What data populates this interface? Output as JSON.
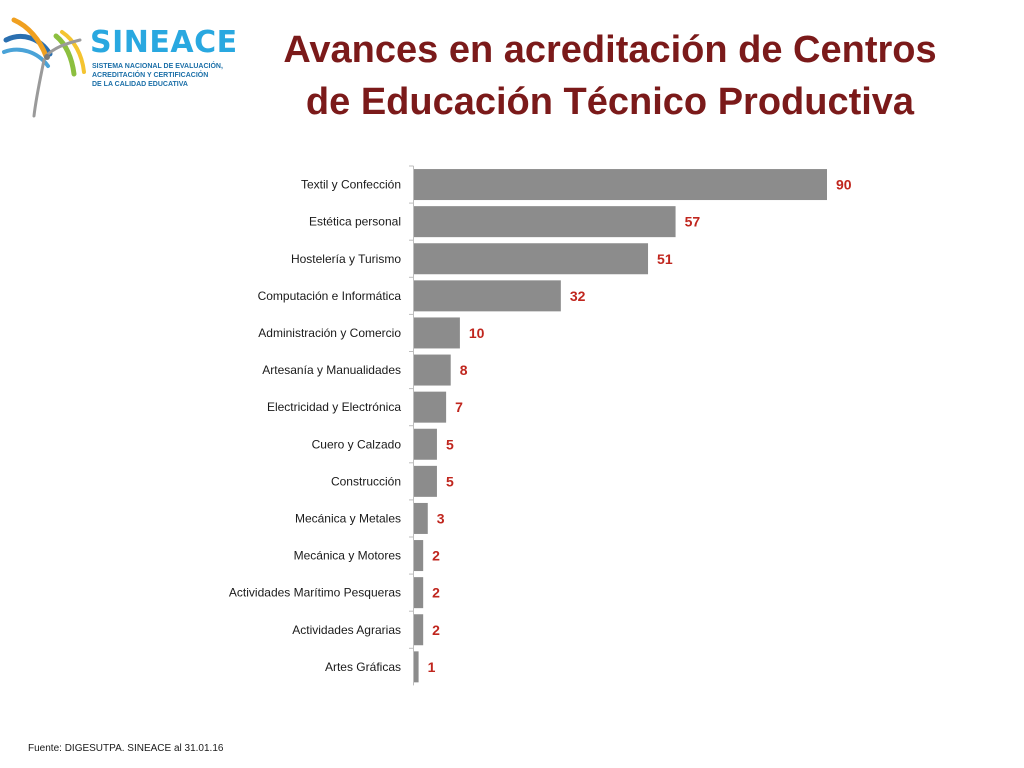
{
  "logo": {
    "name": "SINEACE",
    "subtitle_lines": [
      "SISTEMA NACIONAL DE EVALUACIÓN,",
      "ACREDITACIÓN Y CERTIFICACIÓN",
      "DE LA CALIDAD EDUCATIVA"
    ]
  },
  "title_lines": [
    "Avances en acreditación de Centros",
    "de Educación Técnico Productiva"
  ],
  "source": "Fuente: DIGESUTPA. SINEACE al  31.01.16",
  "colors": {
    "bar": "#8c8c8c",
    "value_label": "#c0261e",
    "title": "#7b1a1a",
    "logo_blue": "#29a8e0"
  },
  "chart_data": {
    "type": "bar",
    "orientation": "horizontal",
    "categories": [
      "Textil y Confección",
      "Estética personal",
      "Hostelería y Turismo",
      "Computación e Informática",
      "Administración y Comercio",
      "Artesanía y Manualidades",
      "Electricidad y Electrónica",
      "Cuero y Calzado",
      "Construcción",
      "Mecánica y Metales",
      "Mecánica y Motores",
      "Actividades Marítimo Pesqueras",
      "Actividades Agrarias",
      "Artes Gráficas"
    ],
    "values": [
      90,
      57,
      51,
      32,
      10,
      8,
      7,
      5,
      5,
      3,
      2,
      2,
      2,
      1
    ],
    "data_labels": [
      "90",
      "57",
      "51",
      "32",
      "10",
      "8",
      "7",
      "5",
      "5",
      "3",
      "2",
      "2",
      "2",
      "1"
    ],
    "title": "",
    "xlabel": "",
    "ylabel": "",
    "xlim": [
      0,
      90
    ],
    "grid": false,
    "legend": "none"
  }
}
